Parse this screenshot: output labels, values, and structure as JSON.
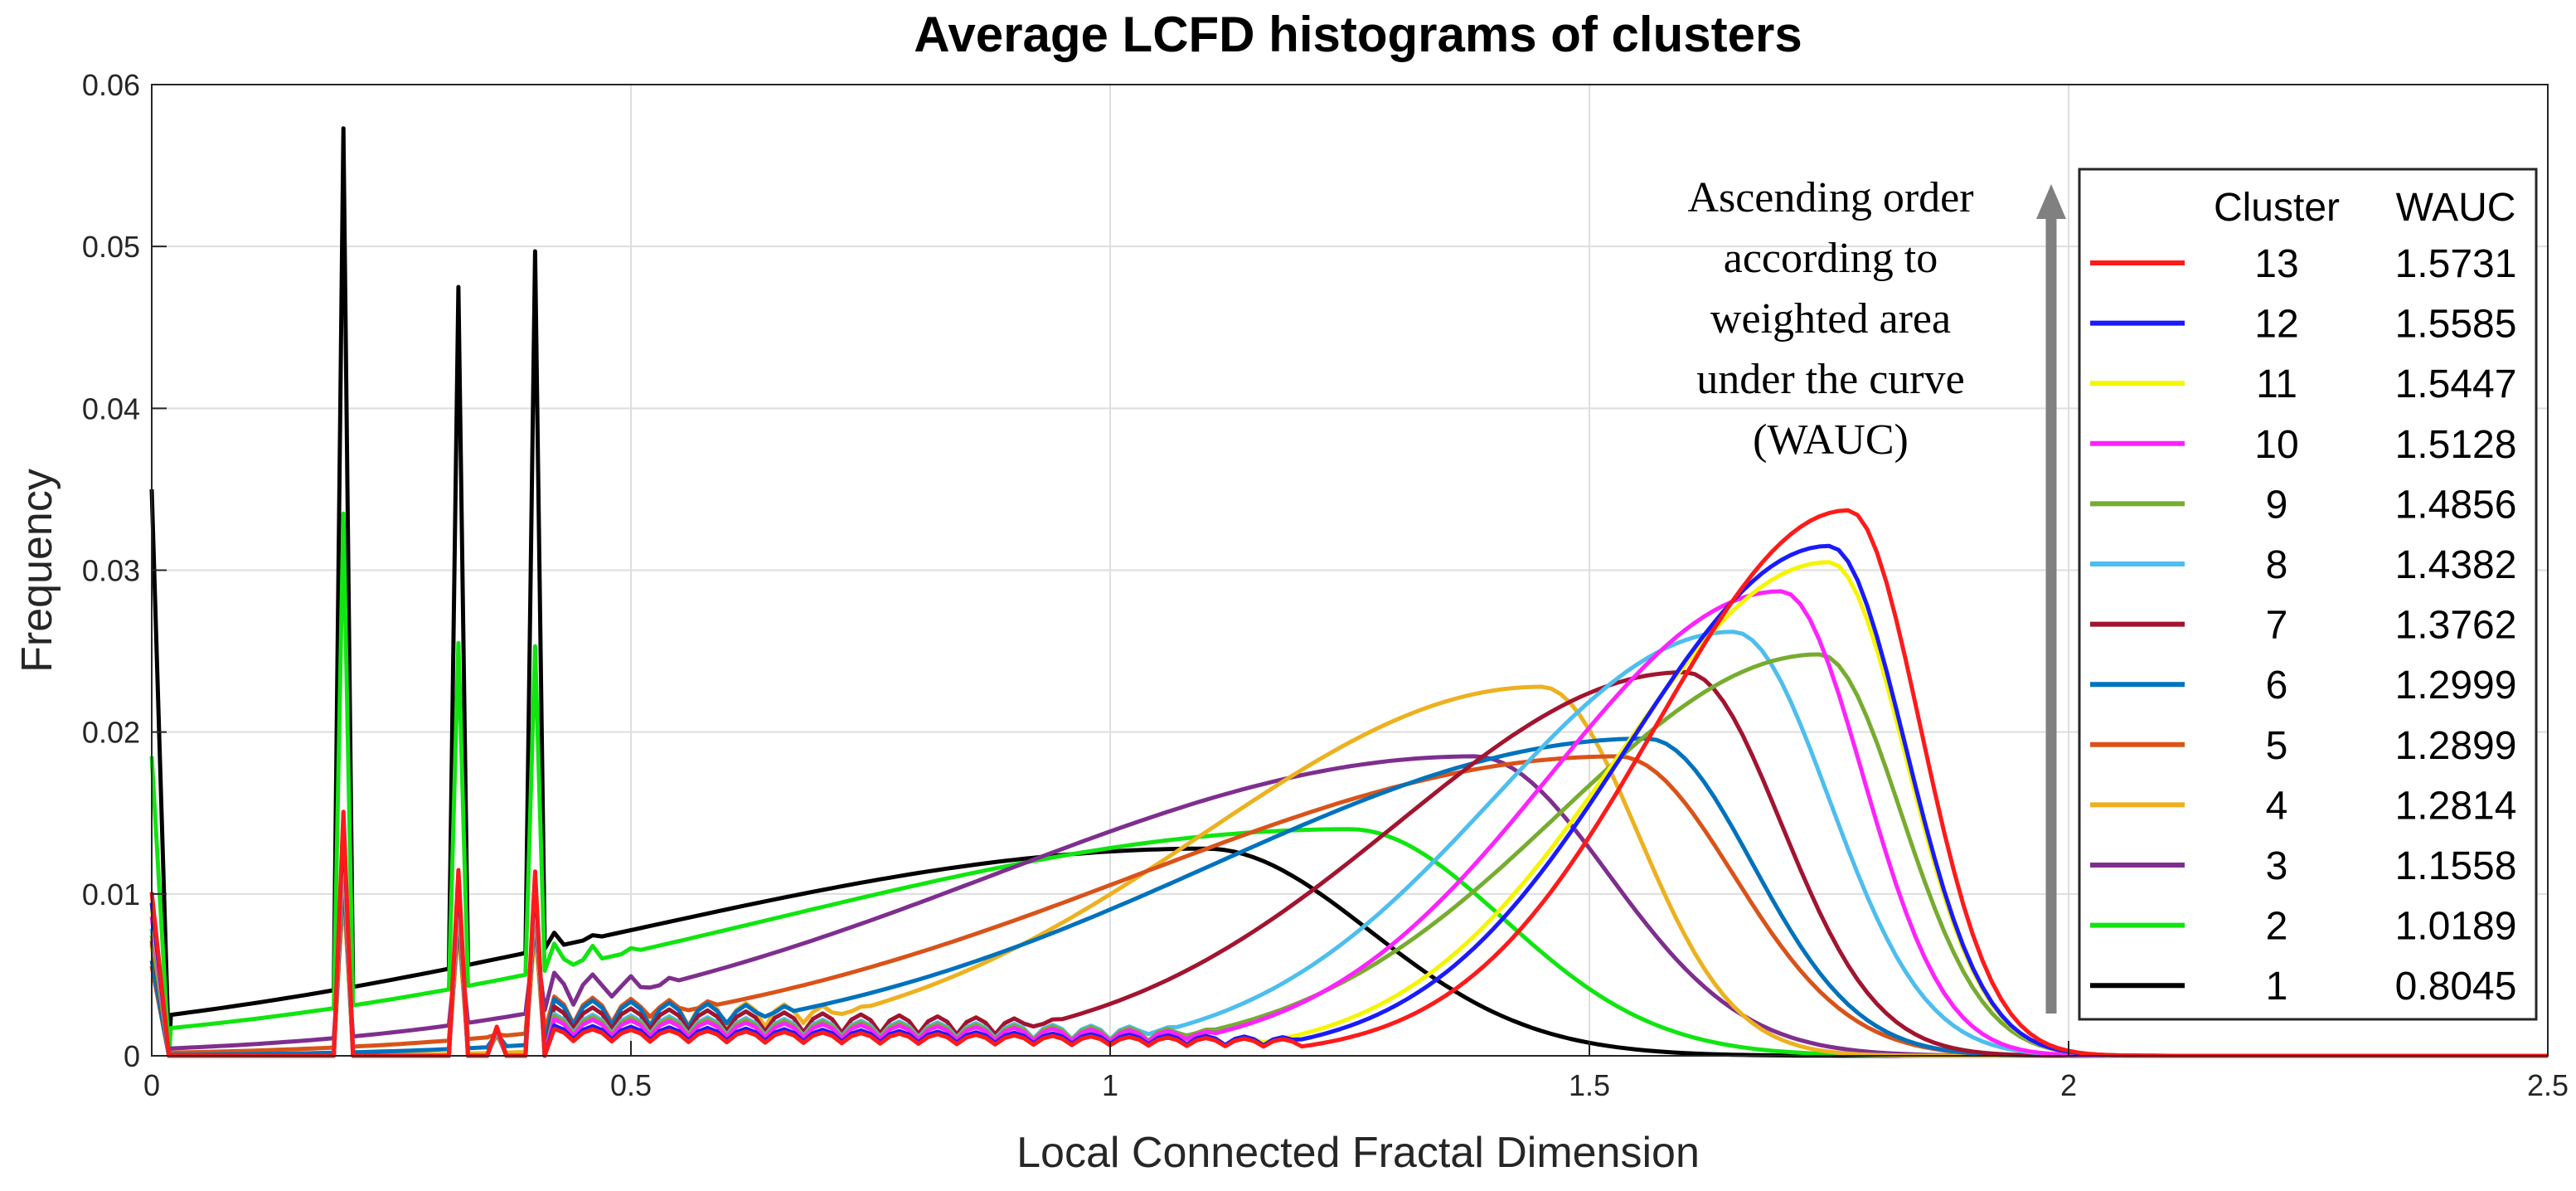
{
  "chart_data": {
    "type": "line",
    "title": "Average LCFD histograms of clusters",
    "xlabel": "Local Connected Fractal Dimension",
    "ylabel": "Frequency",
    "xlim": [
      0,
      2.5
    ],
    "ylim": [
      0,
      0.06
    ],
    "grid": true,
    "xticks": [
      0,
      0.5,
      1,
      1.5,
      2,
      2.5
    ],
    "xtick_labels": [
      "0",
      "0.5",
      "1",
      "1.5",
      "2",
      "2.5"
    ],
    "yticks": [
      0,
      0.01,
      0.02,
      0.03,
      0.04,
      0.05,
      0.06
    ],
    "ytick_labels": [
      "0",
      "0.01",
      "0.02",
      "0.03",
      "0.04",
      "0.05",
      "0.06"
    ],
    "annotation": {
      "lines": [
        "Ascending order",
        "according to",
        "weighted area",
        "under the curve",
        "(WAUC)"
      ]
    },
    "legend": {
      "placement": "right",
      "header_cluster": "Cluster",
      "header_wauc": "WAUC"
    },
    "series": [
      {
        "cluster": "13",
        "wauc": "1.5731",
        "color": "#ff1a1a",
        "peak_x": 1.77,
        "peak_y": 0.0337,
        "sigma_left": 0.2,
        "sigma_right": 0.075,
        "left_scale": 0.05
      },
      {
        "cluster": "12",
        "wauc": "1.5585",
        "color": "#1a1aff",
        "peak_x": 1.75,
        "peak_y": 0.0315,
        "sigma_left": 0.21,
        "sigma_right": 0.08,
        "left_scale": 0.06
      },
      {
        "cluster": "11",
        "wauc": "1.5447",
        "color": "#f5f500",
        "peak_x": 1.75,
        "peak_y": 0.0305,
        "sigma_left": 0.22,
        "sigma_right": 0.08,
        "left_scale": 0.06
      },
      {
        "cluster": "10",
        "wauc": "1.5128",
        "color": "#ff22ff",
        "peak_x": 1.7,
        "peak_y": 0.0287,
        "sigma_left": 0.24,
        "sigma_right": 0.085,
        "left_scale": 0.08
      },
      {
        "cluster": "9",
        "wauc": "1.4856",
        "color": "#77ac30",
        "peak_x": 1.74,
        "peak_y": 0.0248,
        "sigma_left": 0.27,
        "sigma_right": 0.085,
        "left_scale": 0.1
      },
      {
        "cluster": "8",
        "wauc": "1.4382",
        "color": "#4dbeee",
        "peak_x": 1.65,
        "peak_y": 0.0262,
        "sigma_left": 0.25,
        "sigma_right": 0.1,
        "left_scale": 0.1
      },
      {
        "cluster": "7",
        "wauc": "1.3762",
        "color": "#a2142f",
        "peak_x": 1.6,
        "peak_y": 0.0237,
        "sigma_left": 0.3,
        "sigma_right": 0.1,
        "left_scale": 0.13
      },
      {
        "cluster": "6",
        "wauc": "1.2999",
        "color": "#0072bd",
        "peak_x": 1.56,
        "peak_y": 0.0196,
        "sigma_left": 0.45,
        "sigma_right": 0.11,
        "left_scale": 0.18
      },
      {
        "cluster": "5",
        "wauc": "1.2899",
        "color": "#d95319",
        "peak_x": 1.53,
        "peak_y": 0.0185,
        "sigma_left": 0.5,
        "sigma_right": 0.12,
        "left_scale": 0.2
      },
      {
        "cluster": "4",
        "wauc": "1.2814",
        "color": "#edb120",
        "peak_x": 1.45,
        "peak_y": 0.0228,
        "sigma_left": 0.35,
        "sigma_right": 0.1,
        "left_scale": 0.16
      },
      {
        "cluster": "3",
        "wauc": "1.1558",
        "color": "#7e2f8e",
        "peak_x": 1.38,
        "peak_y": 0.0185,
        "sigma_left": 0.5,
        "sigma_right": 0.14,
        "left_scale": 0.28
      },
      {
        "cluster": "2",
        "wauc": "1.0189",
        "color": "#10e510",
        "peak_x": 1.25,
        "peak_y": 0.014,
        "sigma_left": 0.6,
        "sigma_right": 0.16,
        "left_scale": 0.5
      },
      {
        "cluster": "1",
        "wauc": "0.8045",
        "color": "#000000",
        "peak_x": 1.1,
        "peak_y": 0.0128,
        "sigma_left": 0.6,
        "sigma_right": 0.17,
        "left_scale": 0.6
      }
    ],
    "spikes": [
      {
        "x": 0.2,
        "black": 0.0573,
        "green": 0.0335
      },
      {
        "x": 0.32,
        "black": 0.0475,
        "green": 0.0255
      },
      {
        "x": 0.4,
        "black": 0.0497,
        "green": 0.0253
      },
      {
        "x": 0.36,
        "black": 0.0058,
        "green": 0.004
      }
    ]
  }
}
